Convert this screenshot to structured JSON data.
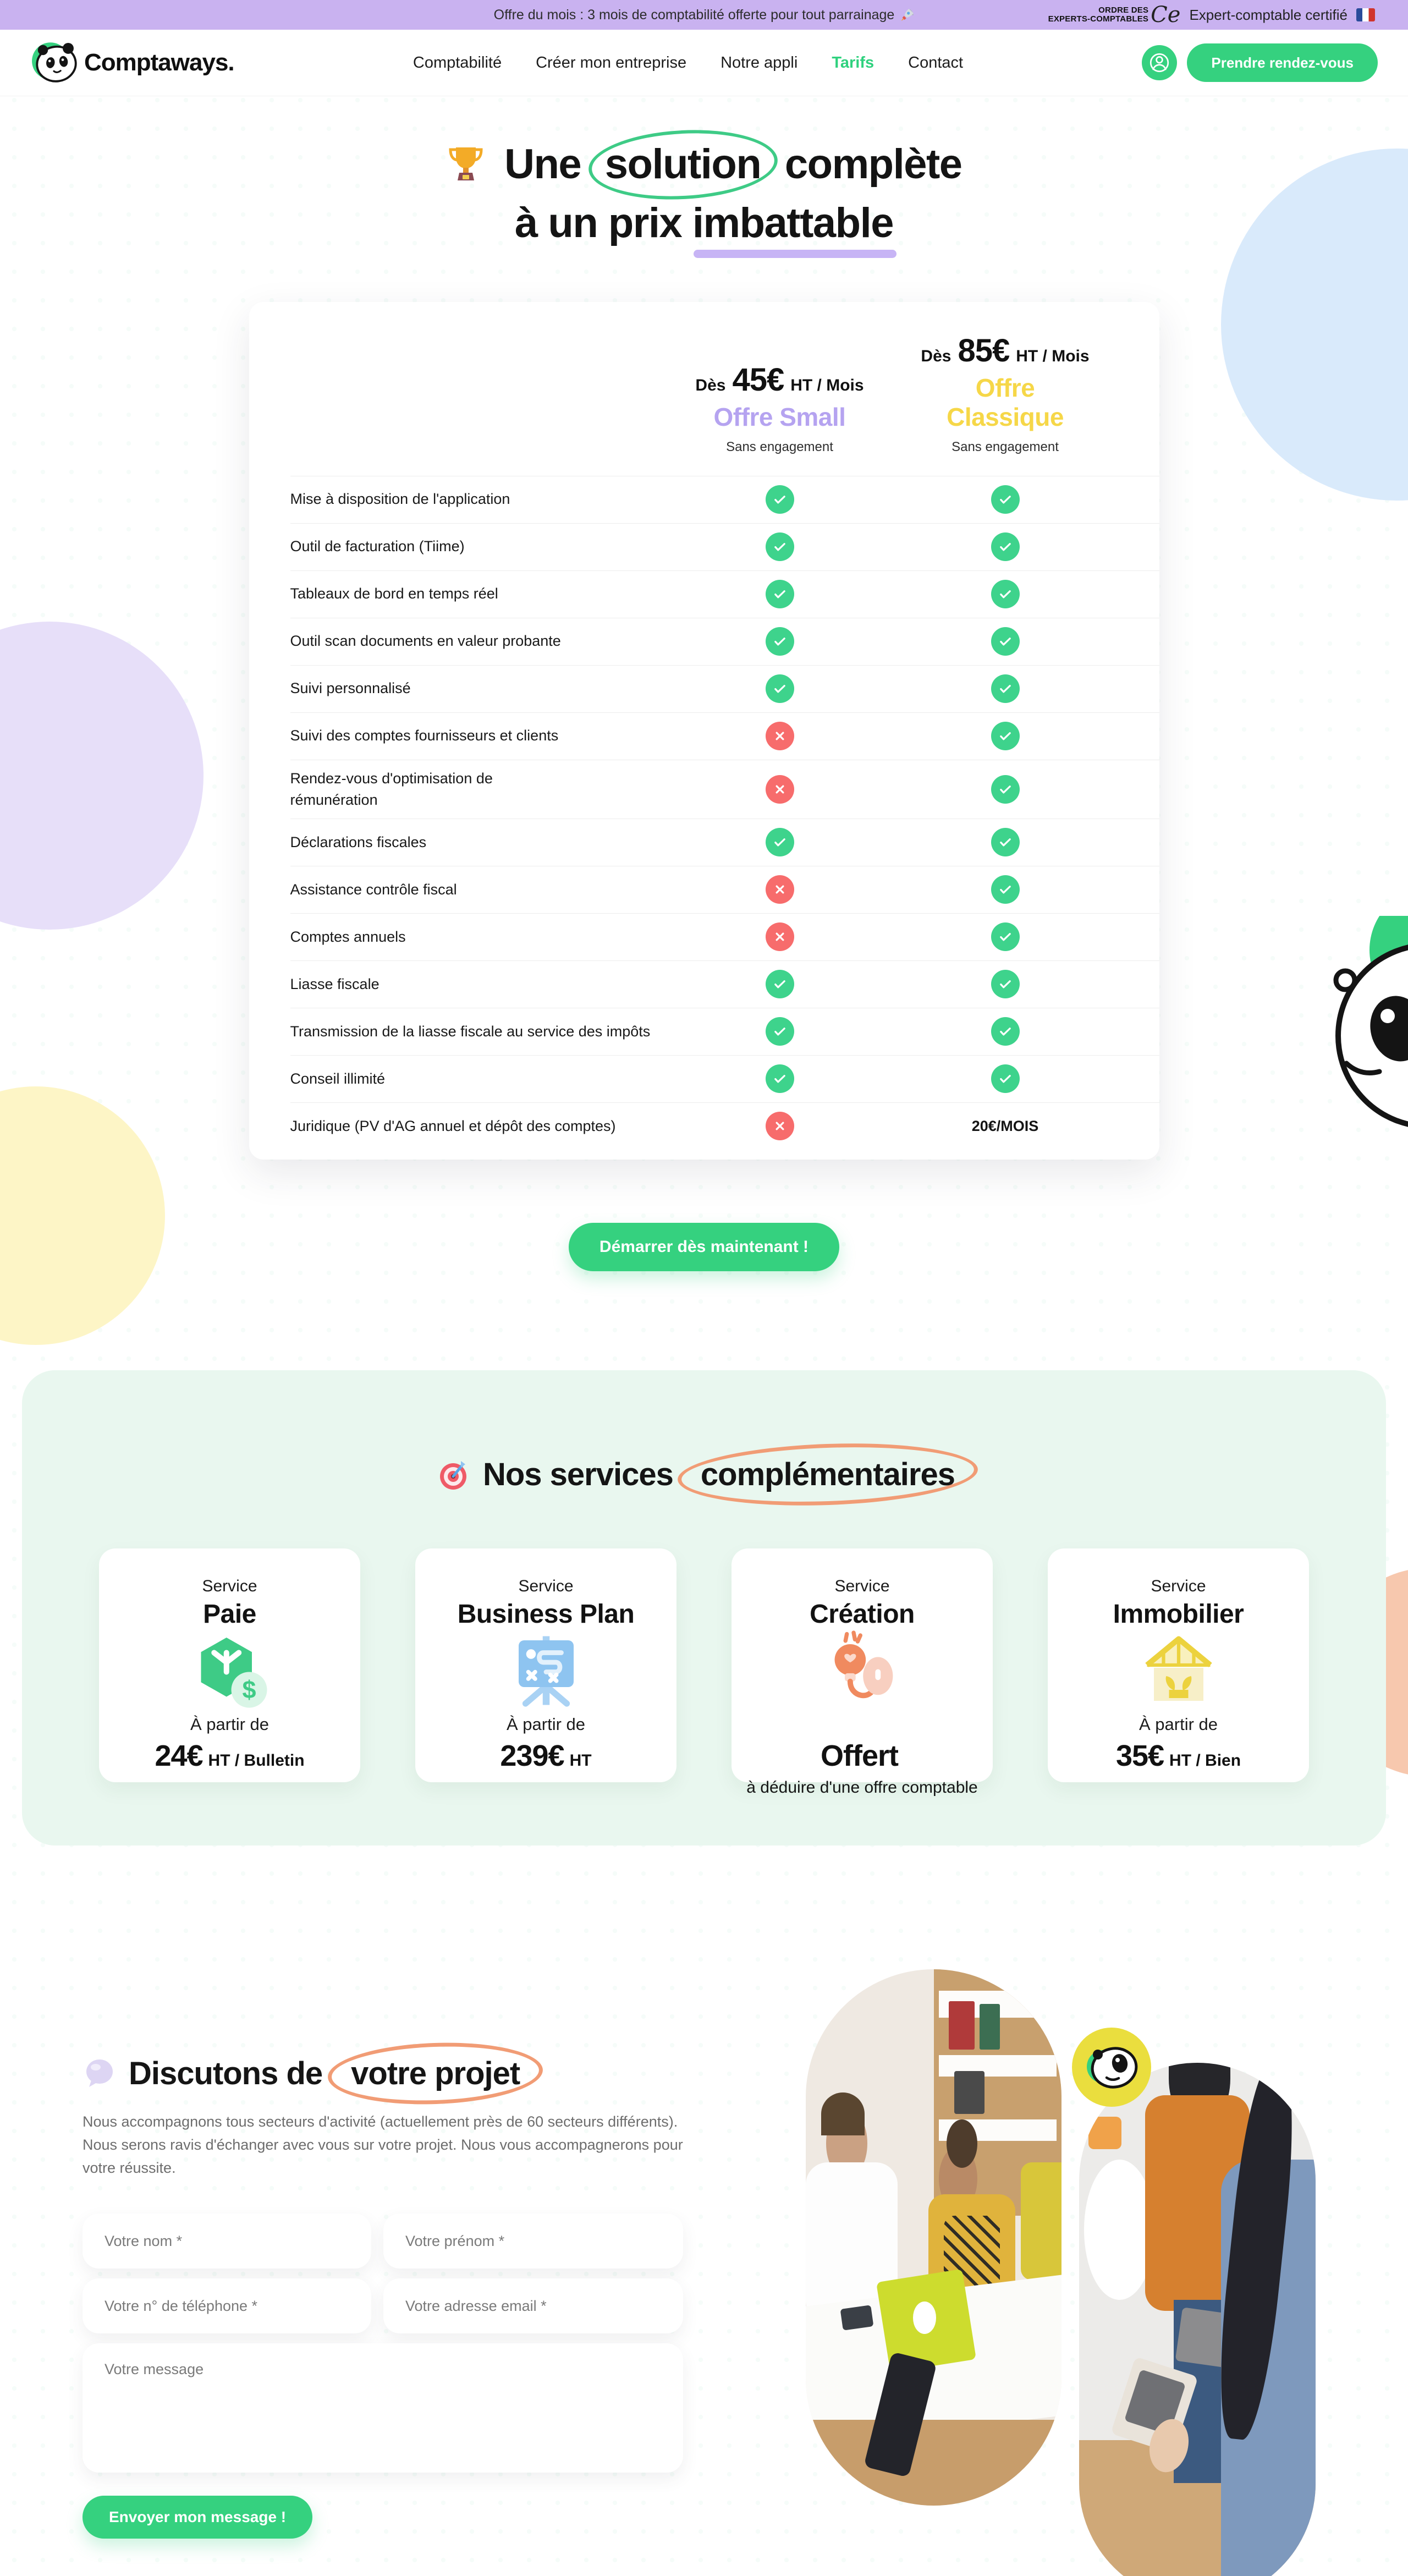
{
  "announcement": {
    "text": "Offre du mois : 3 mois de comptabilité offerte pour tout parrainage",
    "ordre_line1": "ORDRE DES",
    "ordre_line2": "EXPERTS-COMPTABLES",
    "ordre_script": "Ce",
    "certified": "Expert-comptable certifié"
  },
  "nav": {
    "brand": "Comptaways.",
    "items": [
      {
        "label": "Comptabilité"
      },
      {
        "label": "Créer mon entreprise"
      },
      {
        "label": "Notre appli"
      },
      {
        "label": "Tarifs",
        "state": "active"
      },
      {
        "label": "Contact"
      }
    ],
    "cta": "Prendre rendez-vous"
  },
  "hero": {
    "line1_pre": "Une",
    "line1_circled": "solution",
    "line1_post": "complète",
    "line2_pre": "à un prix",
    "line2_underlined": "imbattable"
  },
  "pricing": {
    "plans": [
      {
        "prefix": "Dès",
        "price": "45€",
        "suffix": "HT / Mois",
        "name": "Offre Small",
        "note": "Sans engagement",
        "color_class": "plan-small"
      },
      {
        "prefix": "Dès",
        "price": "85€",
        "suffix": "HT / Mois",
        "name": "Offre Classique",
        "note": "Sans engagement",
        "color_class": "plan-classique"
      }
    ],
    "features": [
      {
        "label": "Mise à disposition de l'application",
        "small": "yes",
        "classique": "yes"
      },
      {
        "label": "Outil de facturation (Tiime)",
        "small": "yes",
        "classique": "yes"
      },
      {
        "label": "Tableaux de bord en temps réel",
        "small": "yes",
        "classique": "yes"
      },
      {
        "label": "Outil scan documents en valeur probante",
        "small": "yes",
        "classique": "yes"
      },
      {
        "label": "Suivi personnalisé",
        "small": "yes",
        "classique": "yes"
      },
      {
        "label": "Suivi des comptes fournisseurs et clients",
        "small": "no",
        "classique": "yes"
      },
      {
        "label": "Rendez-vous d'optimisation de\nrémunération",
        "small": "no",
        "classique": "yes"
      },
      {
        "label": "Déclarations fiscales",
        "small": "yes",
        "classique": "yes"
      },
      {
        "label": "Assistance contrôle fiscal",
        "small": "no",
        "classique": "yes"
      },
      {
        "label": "Comptes annuels",
        "small": "no",
        "classique": "yes"
      },
      {
        "label": "Liasse fiscale",
        "small": "yes",
        "classique": "yes"
      },
      {
        "label": "Transmission de la liasse fiscale au service des impôts",
        "small": "yes",
        "classique": "yes"
      },
      {
        "label": "Conseil illimité",
        "small": "yes",
        "classique": "yes"
      },
      {
        "label": "Juridique (PV d'AG annuel et dépôt des comptes)",
        "small": "no",
        "classique": "20€/MOIS"
      }
    ],
    "cta": "Démarrer dès maintenant !"
  },
  "services": {
    "title_pre": "Nos services",
    "title_circled": "complémentaires",
    "cards": [
      {
        "kicker": "Service",
        "name": "Paie",
        "icon": "paie",
        "line1": "À partir de",
        "price": "24€",
        "price_suffix": "HT / Bulletin",
        "note": ""
      },
      {
        "kicker": "Service",
        "name": "Business Plan",
        "icon": "bplan",
        "line1": "À partir de",
        "price": "239€",
        "price_suffix": "HT",
        "note": ""
      },
      {
        "kicker": "Service",
        "name": "Création",
        "icon": "creation",
        "line1": "",
        "price": "Offert",
        "price_suffix": "",
        "note": "à déduire d'une offre comptable"
      },
      {
        "kicker": "Service",
        "name": "Immobilier",
        "icon": "immo",
        "line1": "À partir de",
        "price": "35€",
        "price_suffix": "HT / Bien",
        "note": ""
      }
    ]
  },
  "contact": {
    "title_pre": "Discutons de",
    "title_circled": "votre projet",
    "paragraph": "Nous accompagnons tous secteurs d'activité (actuellement près de 60 secteurs différents). Nous serons ravis d'échanger avec vous sur votre projet. Nous vous accompagnerons pour votre réussite.",
    "fields": {
      "name": "Votre nom *",
      "firstname": "Votre prénom *",
      "phone": "Votre n° de téléphone *",
      "email": "Votre adresse email *",
      "message": "Votre message"
    },
    "submit": "Envoyer mon message !"
  },
  "colors": {
    "accent_green": "#35d17f",
    "check_green": "#3ed38c",
    "cross_red": "#f76c6c",
    "plan_small_purple": "#b5a3f0",
    "plan_classique_yellow": "#f6d748",
    "announcement_lavender": "#c9b2f0",
    "services_mint": "#e9f7ef",
    "circle_orange": "#f19c75",
    "underline_purple": "#c7b4f5"
  }
}
